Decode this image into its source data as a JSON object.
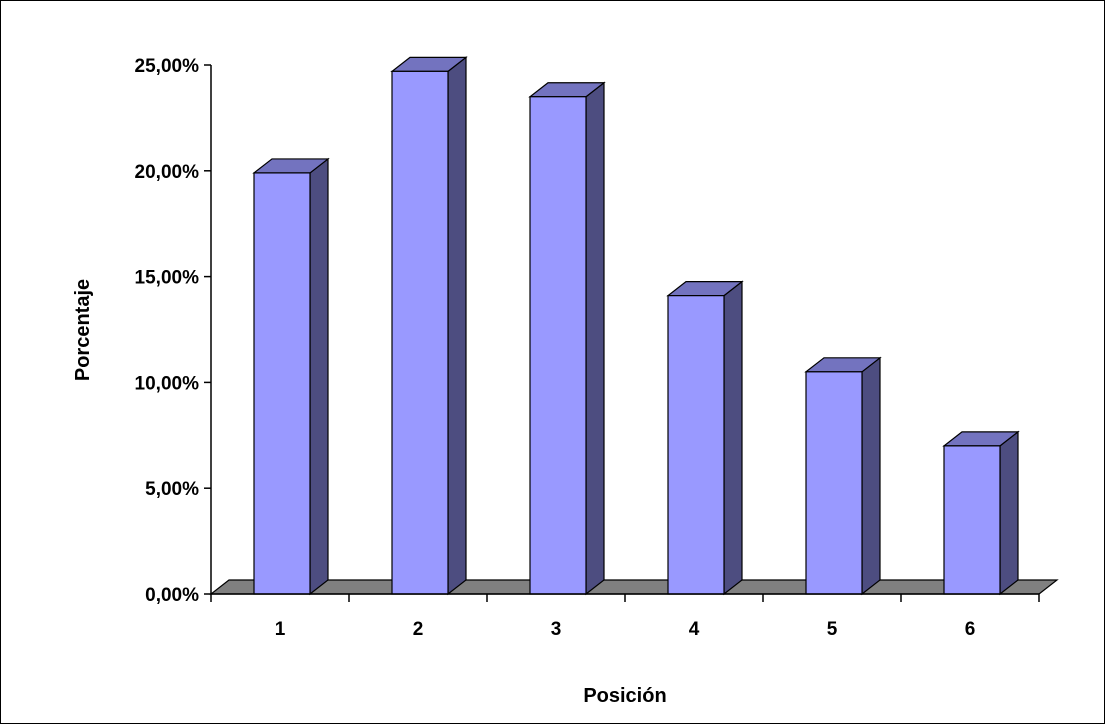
{
  "chart_data": {
    "type": "bar",
    "categories": [
      "1",
      "2",
      "3",
      "4",
      "5",
      "6"
    ],
    "values": [
      0.199,
      0.247,
      0.235,
      0.141,
      0.105,
      0.07
    ],
    "xlabel": "Posición",
    "ylabel": "Porcentaje",
    "ylim": [
      0,
      0.25
    ],
    "yticks": [
      {
        "value": 0,
        "label": "0,00%"
      },
      {
        "value": 0.05,
        "label": "5,00%"
      },
      {
        "value": 0.1,
        "label": "10,00%"
      },
      {
        "value": 0.15,
        "label": "15,00%"
      },
      {
        "value": 0.2,
        "label": "20,00%"
      },
      {
        "value": 0.25,
        "label": "25,00%"
      }
    ],
    "grid": false,
    "legend": "none",
    "style": "3d-column",
    "colors": {
      "bar_front": "#9999ff",
      "bar_side": "#4d4d80",
      "bar_top": "#7373bf",
      "floor": "#808080",
      "axis": "#000000"
    }
  }
}
